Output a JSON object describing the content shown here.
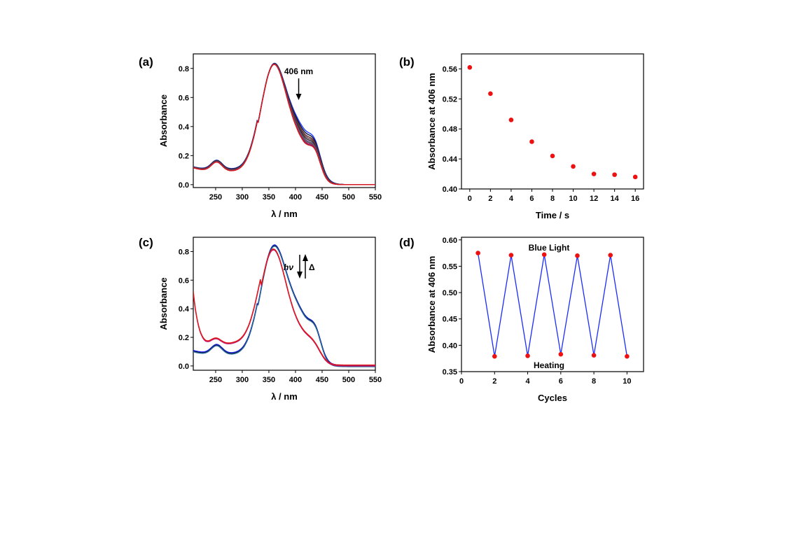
{
  "chart_data": [
    {
      "panel": "(a)",
      "type": "line",
      "xlabel": "λ / nm",
      "ylabel": "Absorbance",
      "xlim": [
        208,
        550
      ],
      "ylim": [
        -0.02,
        0.9
      ],
      "xticks": [
        250,
        300,
        350,
        400,
        450,
        500,
        550
      ],
      "yticks": [
        0.0,
        0.2,
        0.4,
        0.6,
        0.8
      ],
      "ytick_labels": [
        "0.0",
        "0.2",
        "0.4",
        "0.6",
        "0.8"
      ],
      "annotation": "406 nm",
      "annotation_x": 406,
      "colors": [
        "#1f3dff",
        "#0b0b3a",
        "#5a2a2a",
        "#6b3f3f",
        "#2a2a2a",
        "#7a3d8c",
        "#2a7a5a",
        "#d01c5a",
        "#3030a0",
        "#e01818"
      ],
      "series": [
        {
          "peak406": 0.56
        },
        {
          "peak406": 0.54
        },
        {
          "peak406": 0.52
        },
        {
          "peak406": 0.505
        },
        {
          "peak406": 0.49
        },
        {
          "peak406": 0.475
        },
        {
          "peak406": 0.465
        },
        {
          "peak406": 0.455
        },
        {
          "peak406": 0.445
        },
        {
          "peak406": 0.44
        }
      ]
    },
    {
      "panel": "(b)",
      "type": "scatter",
      "xlabel": "Time / s",
      "ylabel": "Absorbance at 406 nm",
      "xlim": [
        -0.8,
        16.8
      ],
      "ylim": [
        0.4,
        0.58
      ],
      "xticks": [
        0,
        2,
        4,
        6,
        8,
        10,
        12,
        14,
        16
      ],
      "yticks": [
        0.4,
        0.44,
        0.48,
        0.52,
        0.56
      ],
      "ytick_labels": [
        "0.40",
        "0.44",
        "0.48",
        "0.52",
        "0.56"
      ],
      "x": [
        0,
        2,
        4,
        6,
        8,
        10,
        12,
        14,
        16
      ],
      "y": [
        0.562,
        0.527,
        0.492,
        0.463,
        0.444,
        0.43,
        0.42,
        0.419,
        0.416
      ],
      "marker_color": "#ee1111"
    },
    {
      "panel": "(c)",
      "type": "line",
      "xlabel": "λ / nm",
      "ylabel": "Absorbance",
      "xlim": [
        208,
        550
      ],
      "ylim": [
        -0.03,
        0.9
      ],
      "xticks": [
        250,
        300,
        350,
        400,
        450,
        500,
        550
      ],
      "yticks": [
        0.0,
        0.2,
        0.4,
        0.6,
        0.8
      ],
      "ytick_labels": [
        "0.0",
        "0.2",
        "0.4",
        "0.6",
        "0.8"
      ],
      "annotation_left": "hν",
      "annotation_right": "Δ",
      "colors": [
        "#1a2bff",
        "#101050",
        "#2a6a9a",
        "#c0106a",
        "#e01818"
      ]
    },
    {
      "panel": "(d)",
      "type": "line",
      "xlabel": "Cycles",
      "ylabel": "Absorbance at 406 nm",
      "xlim": [
        0,
        11
      ],
      "ylim": [
        0.35,
        0.605
      ],
      "xticks": [
        0,
        2,
        4,
        6,
        8,
        10
      ],
      "yticks": [
        0.35,
        0.4,
        0.45,
        0.5,
        0.55,
        0.6
      ],
      "ytick_labels": [
        "0.35",
        "0.40",
        "0.45",
        "0.50",
        "0.55",
        "0.60"
      ],
      "x": [
        1,
        2,
        3,
        4,
        5,
        6,
        7,
        8,
        9,
        10
      ],
      "y": [
        0.575,
        0.379,
        0.571,
        0.38,
        0.572,
        0.383,
        0.57,
        0.381,
        0.571,
        0.379
      ],
      "line_color": "#1a2bff",
      "marker_color": "#ee1111",
      "annotation_top": "Blue Light",
      "annotation_bottom": "Heating"
    }
  ]
}
